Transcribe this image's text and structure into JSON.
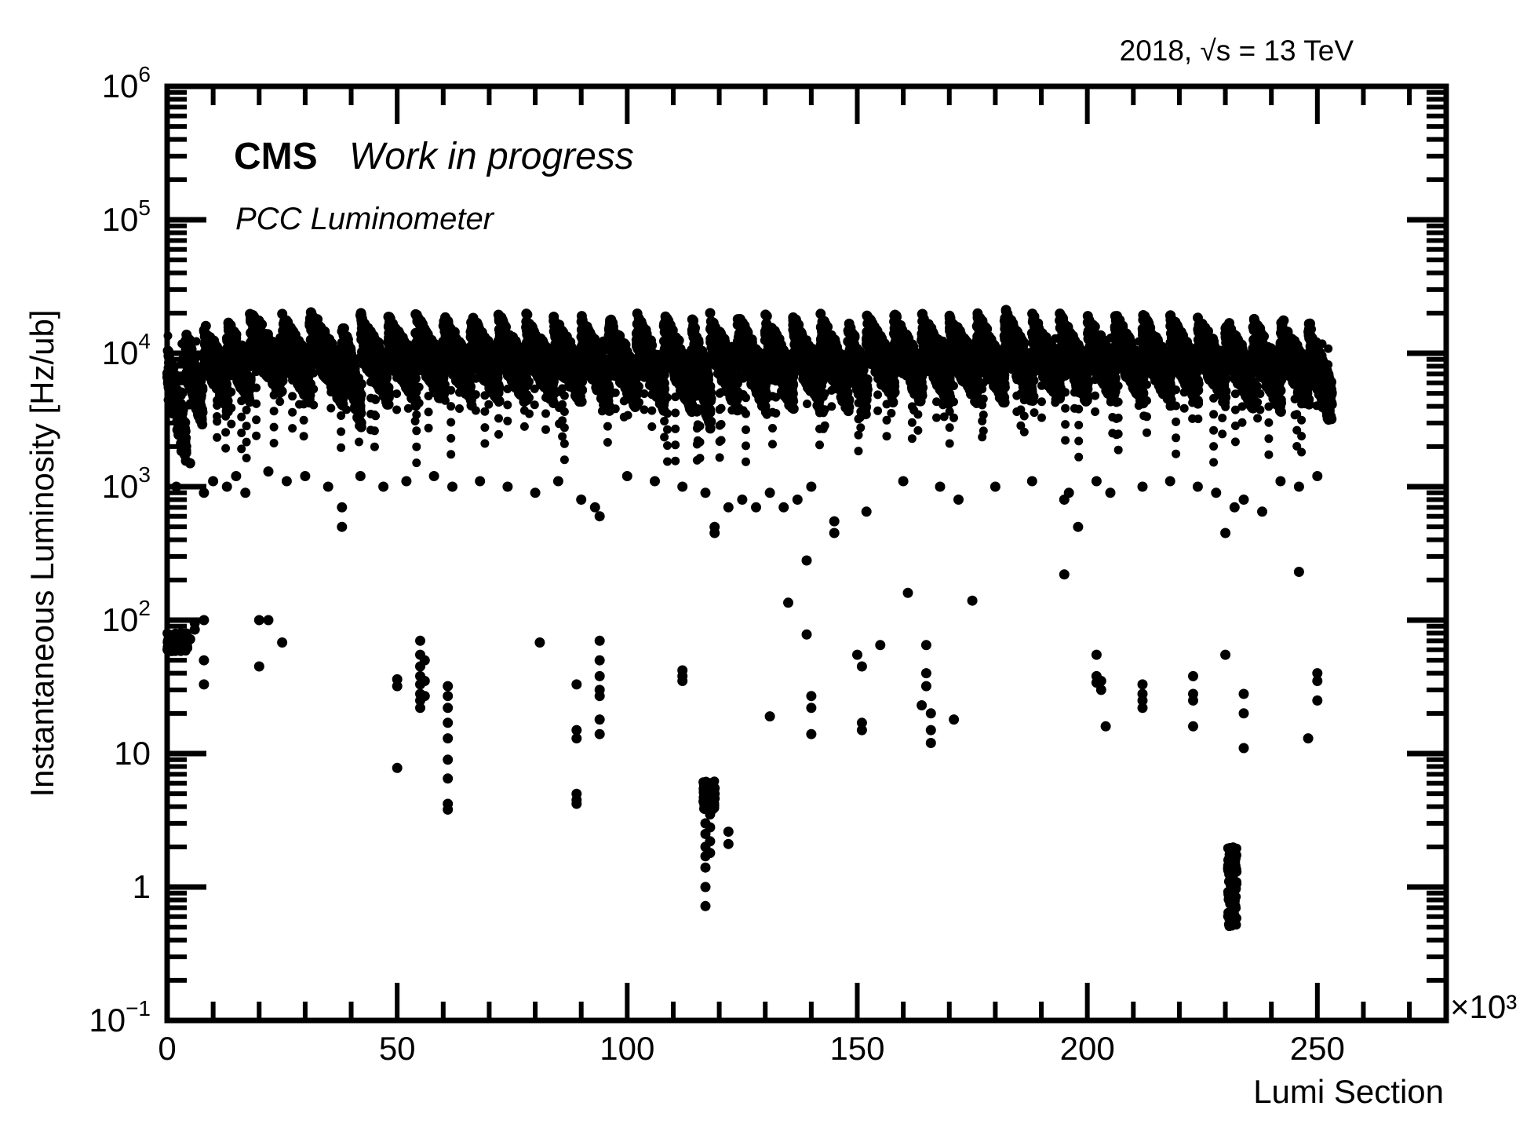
{
  "chart_data": {
    "type": "scatter",
    "title": "",
    "top_label": "2018, √s = 13 TeV",
    "experiment": "CMS",
    "status": "Work in progress",
    "detector": "PCC Luminometer",
    "xlabel": "Lumi Section",
    "x_multiplier": "×10³",
    "ylabel": "Instantaneous Luminosity [Hz/ub]",
    "xlim": [
      0,
      278
    ],
    "ylim": [
      0.1,
      1000000
    ],
    "y_scale": "log",
    "grid": false,
    "marker_color": "#000000",
    "x_ticks": [
      {
        "value": 0,
        "label": "0"
      },
      {
        "value": 50,
        "label": "50"
      },
      {
        "value": 100,
        "label": "100"
      },
      {
        "value": 150,
        "label": "150"
      },
      {
        "value": 200,
        "label": "200"
      },
      {
        "value": 250,
        "label": "250"
      }
    ],
    "y_ticks": [
      {
        "value": 0.1,
        "base": "10",
        "exp": "−1"
      },
      {
        "value": 1,
        "base": "1",
        "exp": ""
      },
      {
        "value": 10,
        "base": "10",
        "exp": ""
      },
      {
        "value": 100,
        "base": "10",
        "exp": "2"
      },
      {
        "value": 1000,
        "base": "10",
        "exp": "3"
      },
      {
        "value": 10000,
        "base": "10",
        "exp": "4"
      },
      {
        "value": 100000,
        "base": "10",
        "exp": "5"
      },
      {
        "value": 1000000,
        "base": "10",
        "exp": "6"
      }
    ],
    "fills": [
      [
        0,
        4.0,
        3000,
        12000
      ],
      [
        4,
        7.5,
        6000,
        15000
      ],
      [
        8,
        13,
        8000,
        17000
      ],
      [
        13,
        18,
        9000,
        18000
      ],
      [
        18,
        25,
        10000,
        22000
      ],
      [
        25,
        31,
        9000,
        20000
      ],
      [
        31,
        38,
        9000,
        22000
      ],
      [
        38,
        42,
        6000,
        18000
      ],
      [
        42,
        48,
        9000,
        20000
      ],
      [
        48,
        54,
        9000,
        20000
      ],
      [
        54,
        60,
        9000,
        20000
      ],
      [
        60,
        66,
        9000,
        20000
      ],
      [
        66,
        72,
        9000,
        20000
      ],
      [
        72,
        78,
        9000,
        20000
      ],
      [
        78,
        84,
        9000,
        20000
      ],
      [
        84,
        90,
        9000,
        19000
      ],
      [
        90,
        96,
        8000,
        19000
      ],
      [
        96,
        102,
        8000,
        19000
      ],
      [
        102,
        108,
        8000,
        20000
      ],
      [
        108,
        114,
        8000,
        20000
      ],
      [
        114,
        118,
        6000,
        19000
      ],
      [
        118,
        124,
        8000,
        20000
      ],
      [
        124,
        130,
        8000,
        20000
      ],
      [
        130,
        136,
        8000,
        20000
      ],
      [
        136,
        142,
        8000,
        20000
      ],
      [
        142,
        148,
        8000,
        20000
      ],
      [
        148,
        152,
        7000,
        19000
      ],
      [
        152,
        158,
        9000,
        20000
      ],
      [
        158,
        164,
        9000,
        20000
      ],
      [
        164,
        170,
        9000,
        20000
      ],
      [
        170,
        176,
        9000,
        20000
      ],
      [
        176,
        182,
        9000,
        20000
      ],
      [
        182,
        188,
        9000,
        22000
      ],
      [
        188,
        194,
        9000,
        20000
      ],
      [
        194,
        200,
        9000,
        20000
      ],
      [
        200,
        206,
        9000,
        20000
      ],
      [
        206,
        212,
        9000,
        20000
      ],
      [
        212,
        218,
        9000,
        20000
      ],
      [
        218,
        224,
        9000,
        20000
      ],
      [
        224,
        230,
        9000,
        19000
      ],
      [
        230,
        236,
        8000,
        19000
      ],
      [
        236,
        242,
        8000,
        19000
      ],
      [
        242,
        248,
        8000,
        19000
      ],
      [
        248,
        253,
        6000,
        18000
      ]
    ],
    "scatter_points": [
      [
        2,
        1000
      ],
      [
        5,
        1500
      ],
      [
        8,
        900
      ],
      [
        10,
        1100
      ],
      [
        13,
        1000
      ],
      [
        15,
        1200
      ],
      [
        17,
        900
      ],
      [
        22,
        1300
      ],
      [
        26,
        1100
      ],
      [
        30,
        1200
      ],
      [
        35,
        1000
      ],
      [
        38,
        700
      ],
      [
        38,
        500
      ],
      [
        42,
        1200
      ],
      [
        47,
        1000
      ],
      [
        52,
        1100
      ],
      [
        58,
        1200
      ],
      [
        62,
        1000
      ],
      [
        68,
        1100
      ],
      [
        74,
        1000
      ],
      [
        80,
        900
      ],
      [
        85,
        1100
      ],
      [
        90,
        800
      ],
      [
        93,
        700
      ],
      [
        94,
        600
      ],
      [
        100,
        1200
      ],
      [
        106,
        1100
      ],
      [
        112,
        1000
      ],
      [
        117,
        900
      ],
      [
        119,
        450
      ],
      [
        119,
        500
      ],
      [
        122,
        700
      ],
      [
        125,
        800
      ],
      [
        128,
        700
      ],
      [
        131,
        900
      ],
      [
        134,
        700
      ],
      [
        137,
        800
      ],
      [
        140,
        1000
      ],
      [
        145,
        450
      ],
      [
        145,
        550
      ],
      [
        152,
        650
      ],
      [
        160,
        1100
      ],
      [
        168,
        1000
      ],
      [
        172,
        800
      ],
      [
        180,
        1000
      ],
      [
        188,
        1100
      ],
      [
        195,
        800
      ],
      [
        196,
        900
      ],
      [
        198,
        500
      ],
      [
        202,
        1100
      ],
      [
        205,
        900
      ],
      [
        212,
        1000
      ],
      [
        218,
        1100
      ],
      [
        224,
        1000
      ],
      [
        228,
        900
      ],
      [
        230,
        450
      ],
      [
        232,
        700
      ],
      [
        234,
        800
      ],
      [
        238,
        650
      ],
      [
        242,
        1100
      ],
      [
        246,
        1000
      ],
      [
        250,
        1200
      ],
      [
        1,
        75
      ],
      [
        2,
        70
      ],
      [
        3,
        80
      ],
      [
        4,
        65
      ],
      [
        4,
        78
      ],
      [
        5,
        72
      ],
      [
        6,
        95
      ],
      [
        6,
        85
      ],
      [
        8,
        100
      ],
      [
        8,
        50
      ],
      [
        8,
        33
      ],
      [
        20,
        100
      ],
      [
        20,
        45
      ],
      [
        22,
        100
      ],
      [
        25,
        68
      ],
      [
        50,
        36
      ],
      [
        50,
        32
      ],
      [
        50,
        7.8
      ],
      [
        55,
        70
      ],
      [
        55,
        55
      ],
      [
        55,
        45
      ],
      [
        55,
        38
      ],
      [
        55,
        33
      ],
      [
        55,
        28
      ],
      [
        55,
        25
      ],
      [
        55,
        22
      ],
      [
        56,
        50
      ],
      [
        56,
        35
      ],
      [
        56,
        27
      ],
      [
        61,
        32
      ],
      [
        61,
        27
      ],
      [
        61,
        22
      ],
      [
        61,
        17
      ],
      [
        61,
        13
      ],
      [
        61,
        9
      ],
      [
        61,
        6.5
      ],
      [
        61,
        4.2
      ],
      [
        61,
        3.8
      ],
      [
        81,
        68
      ],
      [
        89,
        33
      ],
      [
        89,
        15
      ],
      [
        89,
        13
      ],
      [
        89,
        5.0
      ],
      [
        89,
        4.5
      ],
      [
        89,
        4.2
      ],
      [
        94,
        70
      ],
      [
        94,
        50
      ],
      [
        94,
        38
      ],
      [
        94,
        30
      ],
      [
        94,
        27
      ],
      [
        94,
        18
      ],
      [
        94,
        14
      ],
      [
        112,
        42
      ],
      [
        112,
        38
      ],
      [
        112,
        35
      ],
      [
        117,
        5
      ],
      [
        117,
        4
      ],
      [
        117,
        3
      ],
      [
        117,
        2.5
      ],
      [
        117,
        2
      ],
      [
        117,
        1.7
      ],
      [
        117,
        1.4
      ],
      [
        117,
        1
      ],
      [
        117,
        0.72
      ],
      [
        118,
        6
      ],
      [
        118,
        5.2
      ],
      [
        118,
        4.5
      ],
      [
        118,
        3.5
      ],
      [
        118,
        2.8
      ],
      [
        118,
        2.2
      ],
      [
        118,
        1.8
      ],
      [
        119,
        5.5
      ],
      [
        119,
        5
      ],
      [
        119,
        4.6
      ],
      [
        122,
        2.6
      ],
      [
        122,
        2.1
      ],
      [
        131,
        19
      ],
      [
        135,
        135
      ],
      [
        139,
        280
      ],
      [
        139,
        78
      ],
      [
        140,
        27
      ],
      [
        140,
        22
      ],
      [
        140,
        14
      ],
      [
        150,
        55
      ],
      [
        151,
        45
      ],
      [
        151,
        17
      ],
      [
        151,
        15
      ],
      [
        155,
        65
      ],
      [
        161,
        160
      ],
      [
        164,
        23
      ],
      [
        165,
        65
      ],
      [
        165,
        40
      ],
      [
        165,
        32
      ],
      [
        166,
        20
      ],
      [
        166,
        15
      ],
      [
        166,
        12
      ],
      [
        171,
        18
      ],
      [
        175,
        140
      ],
      [
        195,
        220
      ],
      [
        202,
        55
      ],
      [
        202,
        38
      ],
      [
        202,
        34
      ],
      [
        203,
        30
      ],
      [
        203,
        35
      ],
      [
        204,
        16
      ],
      [
        212,
        33
      ],
      [
        212,
        28
      ],
      [
        212,
        25
      ],
      [
        212,
        22
      ],
      [
        223,
        38
      ],
      [
        223,
        28
      ],
      [
        223,
        25
      ],
      [
        223,
        16
      ],
      [
        230,
        55
      ],
      [
        234,
        28
      ],
      [
        234,
        20
      ],
      [
        234,
        11
      ],
      [
        246,
        230
      ],
      [
        248,
        13
      ],
      [
        250,
        40
      ],
      [
        250,
        35
      ],
      [
        250,
        25
      ]
    ],
    "clusters": [
      [
        230.5,
        232.5,
        0.5,
        2.0
      ],
      [
        116.5,
        119.0,
        3.8,
        6.2
      ],
      [
        0,
        4.5,
        58,
        80
      ]
    ]
  }
}
